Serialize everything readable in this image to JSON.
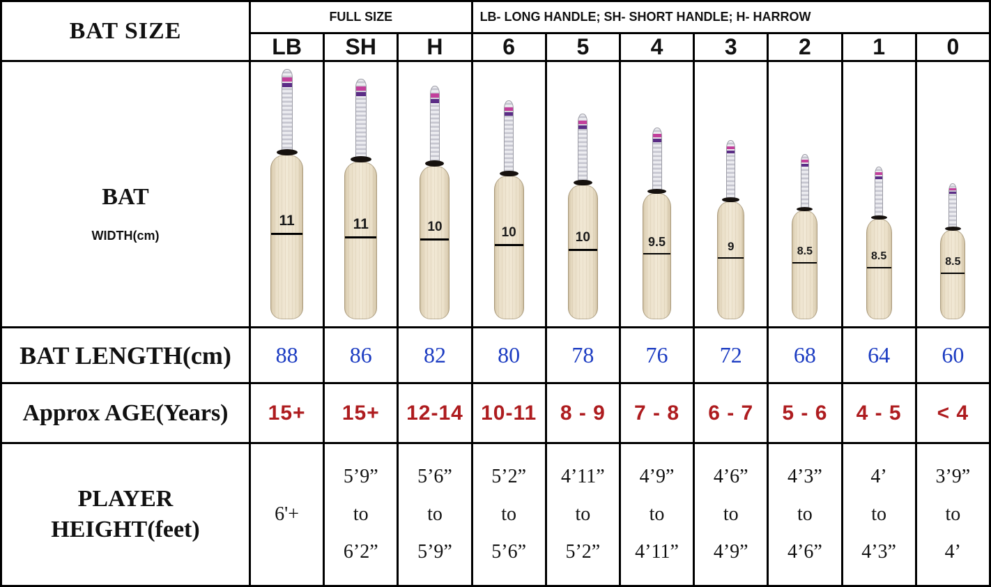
{
  "header": {
    "bat_size_label": "BAT SIZE",
    "full_size_label": "FULL SIZE",
    "legend": "LB- LONG HANDLE; SH- SHORT HANDLE; H- HARROW"
  },
  "row_labels": {
    "bat": "BAT",
    "bat_width_unit": "WIDTH(cm)",
    "bat_length": "BAT LENGTH(cm)",
    "age": "Approx AGE(Years)",
    "player_height_line1": "PLAYER",
    "player_height_line2": "HEIGHT(feet)"
  },
  "colors": {
    "bat_length_value": "#1c3cc2",
    "age_value": "#ae1c1f",
    "grip_stripe_pink": "#c23f9b",
    "grip_stripe_purple": "#5b2d86",
    "blade": "#eadfc8",
    "border": "#000000",
    "background": "#ffffff"
  },
  "sizes": [
    {
      "label": "LB",
      "width_cm": "11",
      "length_cm": "88",
      "age": "15+",
      "height_lines": [
        "6'+"
      ]
    },
    {
      "label": "SH",
      "width_cm": "11",
      "length_cm": "86",
      "age": "15+",
      "height_lines": [
        "5’9”",
        "to",
        "6’2”"
      ]
    },
    {
      "label": "H",
      "width_cm": "10",
      "length_cm": "82",
      "age": "12-14",
      "height_lines": [
        "5’6”",
        "to",
        "5’9”"
      ]
    },
    {
      "label": "6",
      "width_cm": "10",
      "length_cm": "80",
      "age": "10-11",
      "height_lines": [
        "5’2”",
        "to",
        "5’6”"
      ]
    },
    {
      "label": "5",
      "width_cm": "10",
      "length_cm": "78",
      "age": "8 - 9",
      "height_lines": [
        "4’11”",
        "to",
        "5’2”"
      ]
    },
    {
      "label": "4",
      "width_cm": "9.5",
      "length_cm": "76",
      "age": "7 - 8",
      "height_lines": [
        "4’9”",
        "to",
        "4’11”"
      ]
    },
    {
      "label": "3",
      "width_cm": "9",
      "length_cm": "72",
      "age": "6 - 7",
      "height_lines": [
        "4’6”",
        "to",
        "4’9”"
      ]
    },
    {
      "label": "2",
      "width_cm": "8.5",
      "length_cm": "68",
      "age": "5 - 6",
      "height_lines": [
        "4’3”",
        "to",
        "4’6”"
      ]
    },
    {
      "label": "1",
      "width_cm": "8.5",
      "length_cm": "64",
      "age": "4 - 5",
      "height_lines": [
        "4’",
        "to",
        "4’3”"
      ]
    },
    {
      "label": "0",
      "width_cm": "8.5",
      "length_cm": "60",
      "age": "< 4",
      "height_lines": [
        "3’9”",
        "to",
        "4’"
      ]
    }
  ],
  "chart_data": {
    "type": "table",
    "title": "Cricket bat size chart",
    "columns": [
      "LB",
      "SH",
      "H",
      "6",
      "5",
      "4",
      "3",
      "2",
      "1",
      "0"
    ],
    "column_groups": [
      {
        "label": "FULL SIZE",
        "columns": [
          "LB",
          "SH",
          "H"
        ]
      },
      {
        "label": "LB- LONG HANDLE; SH- SHORT HANDLE; H- HARROW",
        "columns": [
          "6",
          "5",
          "4",
          "3",
          "2",
          "1",
          "0"
        ]
      }
    ],
    "rows": [
      {
        "label": "BAT WIDTH(cm)",
        "values": [
          "11",
          "11",
          "10",
          "10",
          "10",
          "9.5",
          "9",
          "8.5",
          "8.5",
          "8.5"
        ]
      },
      {
        "label": "BAT LENGTH(cm)",
        "values": [
          "88",
          "86",
          "82",
          "80",
          "78",
          "76",
          "72",
          "68",
          "64",
          "60"
        ]
      },
      {
        "label": "Approx AGE(Years)",
        "values": [
          "15+",
          "15+",
          "12-14",
          "10-11",
          "8 - 9",
          "7 - 8",
          "6 - 7",
          "5 - 6",
          "4 - 5",
          "< 4"
        ]
      },
      {
        "label": "PLAYER HEIGHT(feet)",
        "values": [
          "6'+",
          "5’9” to 6’2”",
          "5’6” to 5’9”",
          "5’2” to 5’6”",
          "4’11” to 5’2”",
          "4’9” to 4’11”",
          "4’6” to 4’9”",
          "4’3” to 4’6”",
          "4’ to 4’3”",
          "3’9” to 4’"
        ]
      }
    ]
  }
}
